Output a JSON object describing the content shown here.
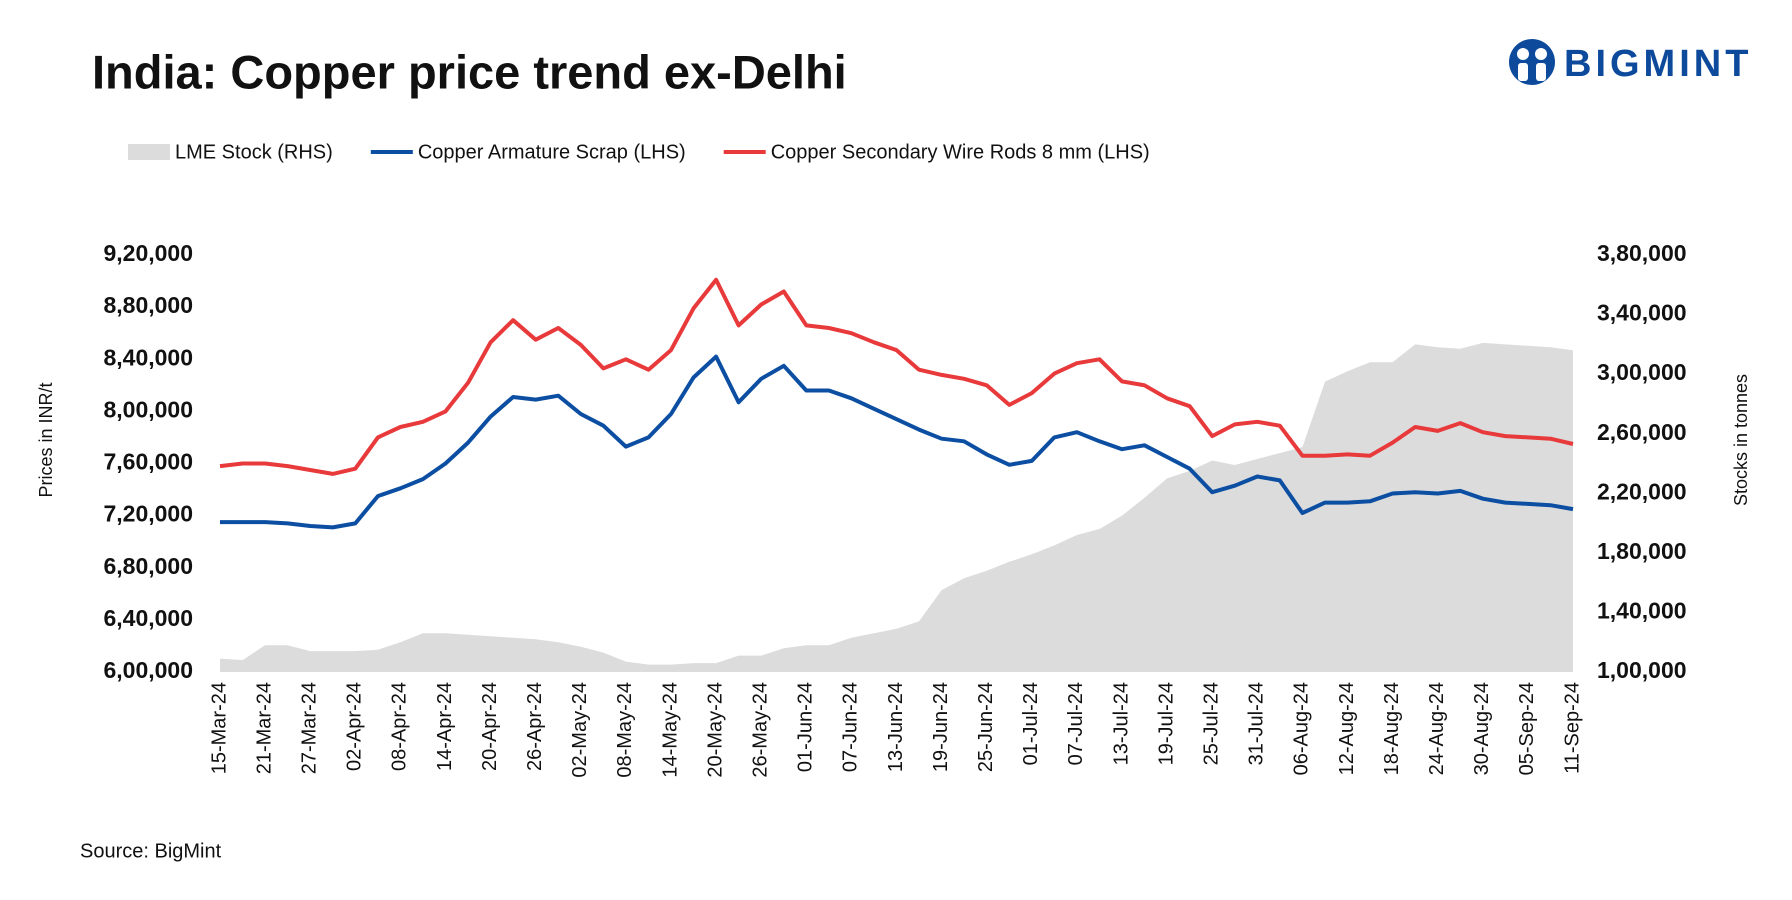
{
  "logo": "BIGMINT",
  "chart_data": {
    "type": "line",
    "title": "India: Copper price trend ex-Delhi",
    "source": "Source: BigMint",
    "ylabel": "Prices in INR/t",
    "y2label": "Stocks in tonnes",
    "grid": false,
    "legend": "top",
    "categories": [
      "15-Mar-24",
      null,
      "21-Mar-24",
      null,
      "27-Mar-24",
      null,
      "02-Apr-24",
      null,
      "08-Apr-24",
      null,
      "14-Apr-24",
      null,
      "20-Apr-24",
      null,
      "26-Apr-24",
      null,
      "02-May-24",
      null,
      "08-May-24",
      null,
      "14-May-24",
      null,
      "20-May-24",
      null,
      "26-May-24",
      null,
      "01-Jun-24",
      null,
      "07-Jun-24",
      null,
      "13-Jun-24",
      null,
      "19-Jun-24",
      null,
      "25-Jun-24",
      null,
      "01-Jul-24",
      null,
      "07-Jul-24",
      null,
      "13-Jul-24",
      null,
      "19-Jul-24",
      null,
      "25-Jul-24",
      null,
      "31-Jul-24",
      null,
      "06-Aug-24",
      null,
      "12-Aug-24",
      null,
      "18-Aug-24",
      null,
      "24-Aug-24",
      null,
      "30-Aug-24",
      null,
      "05-Sep-24",
      null,
      "11-Sep-24"
    ],
    "ylim": [
      600000,
      920000
    ],
    "yticks": [
      {
        "value": 600000,
        "label": "6,00,000"
      },
      {
        "value": 640000,
        "label": "6,40,000"
      },
      {
        "value": 680000,
        "label": "6,80,000"
      },
      {
        "value": 720000,
        "label": "7,20,000"
      },
      {
        "value": 760000,
        "label": "7,60,000"
      },
      {
        "value": 800000,
        "label": "8,00,000"
      },
      {
        "value": 840000,
        "label": "8,40,000"
      },
      {
        "value": 880000,
        "label": "8,80,000"
      },
      {
        "value": 920000,
        "label": "9,20,000"
      }
    ],
    "y2lim": [
      100000,
      380000
    ],
    "y2ticks": [
      {
        "value": 100000,
        "label": "1,00,000"
      },
      {
        "value": 140000,
        "label": "1,40,000"
      },
      {
        "value": 180000,
        "label": "1,80,000"
      },
      {
        "value": 220000,
        "label": "2,20,000"
      },
      {
        "value": 260000,
        "label": "2,60,000"
      },
      {
        "value": 300000,
        "label": "3,00,000"
      },
      {
        "value": 340000,
        "label": "3,40,000"
      },
      {
        "value": 380000,
        "label": "3,80,000"
      }
    ],
    "series": [
      {
        "name": "LME Stock (RHS)",
        "type": "area",
        "axis": "y2",
        "color": "#dcdcdc",
        "values": [
          109000,
          108000,
          118000,
          118000,
          114000,
          114000,
          114000,
          115000,
          120000,
          126000,
          126000,
          125000,
          124000,
          123000,
          122000,
          120000,
          117000,
          113000,
          107000,
          105000,
          105000,
          106000,
          106000,
          111000,
          111000,
          116000,
          118000,
          118000,
          123000,
          126000,
          129000,
          134000,
          155000,
          163000,
          168000,
          174000,
          179000,
          185000,
          192000,
          196000,
          205000,
          217000,
          230000,
          235000,
          242000,
          239000,
          243000,
          247000,
          251000,
          295000,
          302000,
          308000,
          308000,
          320000,
          318000,
          317000,
          321000,
          320000,
          319000,
          318000,
          316000
        ]
      },
      {
        "name": "Copper Armature Scrap (LHS)",
        "type": "line",
        "color": "#0b4ea2",
        "values": [
          715000,
          715000,
          715000,
          714000,
          712000,
          711000,
          714000,
          735000,
          741000,
          748000,
          760000,
          776000,
          796000,
          811000,
          809000,
          812000,
          798000,
          789000,
          773000,
          780000,
          798000,
          826000,
          842000,
          807000,
          825000,
          835000,
          816000,
          816000,
          810000,
          802000,
          794000,
          786000,
          779000,
          777000,
          767000,
          759000,
          762000,
          780000,
          784000,
          777000,
          771000,
          774000,
          765000,
          756000,
          738000,
          743000,
          750000,
          747000,
          722000,
          730000,
          730000,
          731000,
          737000,
          738000,
          737000,
          739000,
          733000,
          730000,
          729000,
          728000,
          725000
        ]
      },
      {
        "name": "Copper Secondary Wire Rods 8 mm (LHS)",
        "type": "line",
        "color": "#e8393b",
        "values": [
          758000,
          760000,
          760000,
          758000,
          755000,
          752000,
          756000,
          780000,
          788000,
          792000,
          800000,
          822000,
          853000,
          870000,
          855000,
          864000,
          851000,
          833000,
          840000,
          832000,
          847000,
          879000,
          901000,
          866000,
          882000,
          892000,
          866000,
          864000,
          860000,
          853000,
          847000,
          832000,
          828000,
          825000,
          820000,
          805000,
          814000,
          829000,
          837000,
          840000,
          823000,
          820000,
          810000,
          804000,
          781000,
          790000,
          792000,
          789000,
          766000,
          766000,
          767000,
          766000,
          776000,
          788000,
          785000,
          791000,
          784000,
          781000,
          780000,
          779000,
          775000
        ]
      }
    ]
  }
}
